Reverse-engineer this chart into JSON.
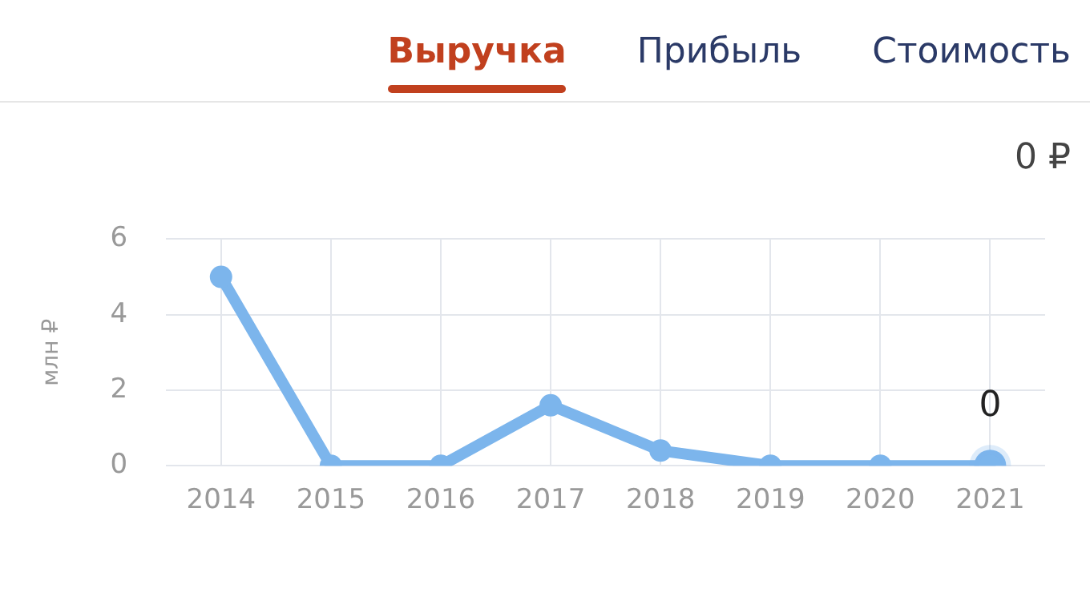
{
  "chart_data": {
    "type": "line",
    "annotations": [
      "Выручка",
      "Прибыль",
      "Стоимость",
      "0 ₽"
    ],
    "ylabel": "млн ₽",
    "categories": [
      "2014",
      "2015",
      "2016",
      "2017",
      "2018",
      "2019",
      "2020",
      "2021"
    ],
    "series": [
      {
        "color": "#7cb5ec",
        "values": [
          5,
          0,
          0,
          1.6,
          0.4,
          0,
          0,
          0
        ],
        "value_labels": [
          null,
          null,
          null,
          null,
          null,
          null,
          null,
          "0"
        ]
      }
    ],
    "ylim": [
      0,
      6
    ],
    "yticks": [
      0,
      2,
      4,
      6
    ],
    "grid": true,
    "legend": false,
    "marker": "circle",
    "line_style": "solid"
  }
}
